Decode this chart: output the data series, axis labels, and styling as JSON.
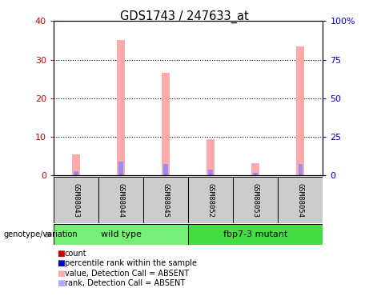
{
  "title": "GDS1743 / 247633_at",
  "samples": [
    "GSM88043",
    "GSM88044",
    "GSM88045",
    "GSM88052",
    "GSM88053",
    "GSM88054"
  ],
  "pink_values": [
    5.5,
    35.0,
    26.5,
    9.5,
    3.2,
    33.5
  ],
  "blue_values": [
    2.8,
    9.0,
    7.5,
    3.8,
    2.0,
    7.5
  ],
  "red_values": [
    0.5,
    0.5,
    0.5,
    0.5,
    0.5,
    0.5
  ],
  "ylim_left": [
    0,
    40
  ],
  "ylim_right": [
    0,
    100
  ],
  "yticks_left": [
    0,
    10,
    20,
    30,
    40
  ],
  "yticks_right": [
    0,
    25,
    50,
    75,
    100
  ],
  "ytick_labels_left": [
    "0",
    "10",
    "20",
    "30",
    "40"
  ],
  "ytick_labels_right": [
    "0",
    "25",
    "50",
    "75",
    "100%"
  ],
  "left_tick_color": "#cc0000",
  "right_tick_color": "#0000cc",
  "pink_bar_width": 0.18,
  "blue_bar_width": 0.1,
  "red_bar_width": 0.06,
  "pink_color": "#ffaaaa",
  "blue_color": "#8888ff",
  "red_color": "#cc0000",
  "legend_items": [
    {
      "color": "#cc0000",
      "label": "count"
    },
    {
      "color": "#0000cc",
      "label": "percentile rank within the sample"
    },
    {
      "color": "#ffaaaa",
      "label": "value, Detection Call = ABSENT"
    },
    {
      "color": "#aaaaff",
      "label": "rank, Detection Call = ABSENT"
    }
  ],
  "wt_color": "#77ee77",
  "mut_color": "#44dd44",
  "label_bg": "#cccccc"
}
